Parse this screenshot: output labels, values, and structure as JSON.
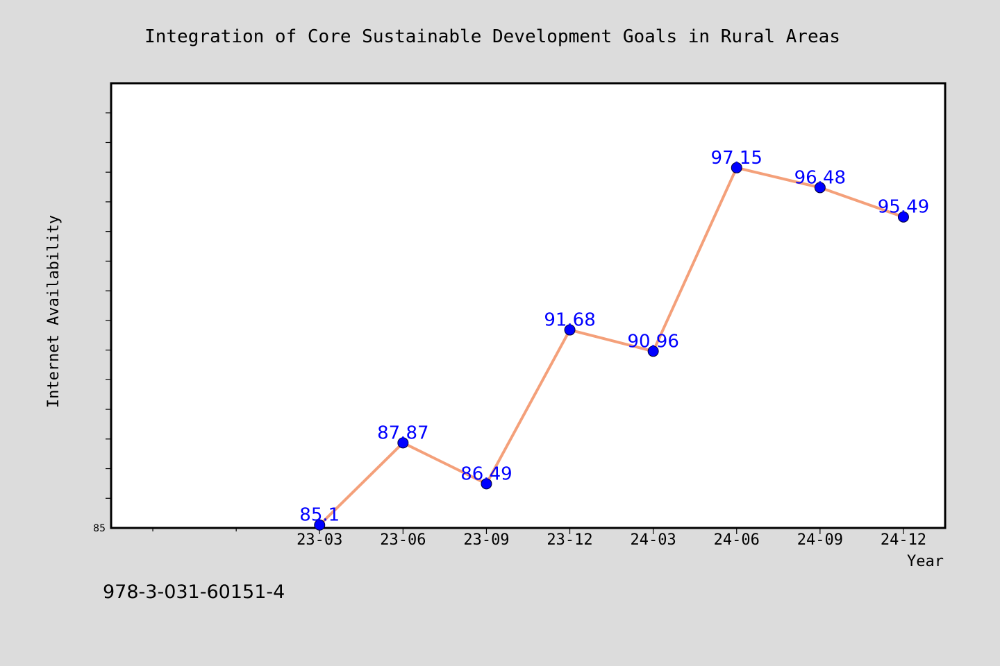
{
  "chart_data": {
    "type": "line",
    "title": "Integration of Core Sustainable Development Goals in Rural Areas",
    "xlabel": "Year",
    "ylabel": "Internet Availability",
    "categories": [
      "23-03",
      "23-06",
      "23-09",
      "23-12",
      "24-03",
      "24-06",
      "24-09",
      "24-12"
    ],
    "series": [
      {
        "values": [
          85.1,
          87.87,
          86.49,
          91.68,
          90.96,
          97.15,
          96.48,
          95.49
        ],
        "line_color": "#f4a07a",
        "marker_color": "#0000ff",
        "label_color": "#0000ff"
      }
    ],
    "data_labels": [
      "85.1",
      "87.87",
      "86.49",
      "91.68",
      "90.96",
      "97.15",
      "96.48",
      "95.49"
    ],
    "ylim": [
      85,
      100
    ],
    "yticks_major": [
      85,
      87,
      89,
      91,
      93,
      95,
      97,
      99
    ],
    "ytick_labels": [
      "85"
    ],
    "x_slots": 10,
    "grid": false,
    "legend": "none"
  },
  "footer": {
    "isbn": "978-3-031-60151-4"
  },
  "colors": {
    "background": "#dcdcdc",
    "plot_area": "#ffffff",
    "frame": "#000000"
  }
}
